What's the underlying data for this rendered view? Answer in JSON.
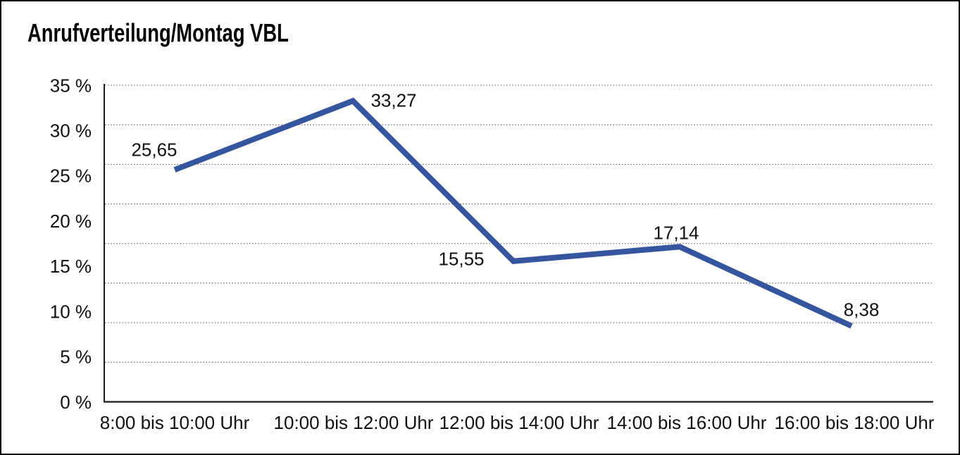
{
  "chart_data": {
    "type": "line",
    "title": "Anrufverteilung/Montag VBL",
    "categories": [
      "8:00 bis 10:00 Uhr",
      "10:00 bis 12:00 Uhr",
      "12:00 bis 14:00 Uhr",
      "14:00 bis 16:00 Uhr",
      "16:00 bis 18:00 Uhr"
    ],
    "values": [
      25.65,
      33.27,
      15.55,
      17.14,
      8.38
    ],
    "value_labels": [
      "25,65",
      "33,27",
      "15,55",
      "17,14",
      "8,38"
    ],
    "y_ticks": [
      35,
      30,
      25,
      20,
      15,
      10,
      5,
      0
    ],
    "y_tick_labels": [
      "35 %",
      "30 %",
      "25 %",
      "20 %",
      "15 %",
      "10 %",
      "5 %",
      "0 %"
    ],
    "ylim": [
      0,
      35
    ],
    "xlabel": "",
    "ylabel": "",
    "legend_position": "none",
    "grid": "horizontal dotted, 8 rows",
    "colors": {
      "line": "#35569E",
      "text": "#111111",
      "grid": "#555555",
      "axis": "#1a1a1a",
      "background": "#ffffff",
      "border": "#000000"
    }
  }
}
